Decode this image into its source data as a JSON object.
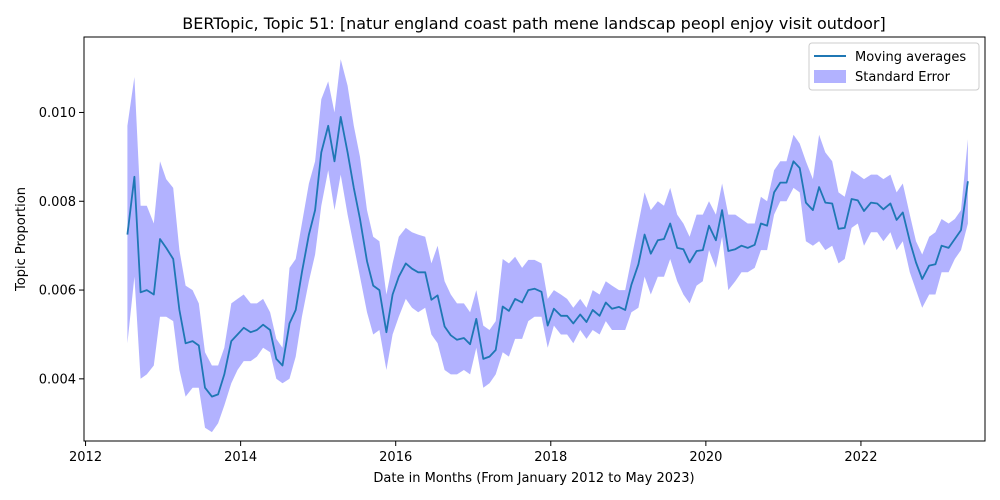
{
  "chart_data": {
    "type": "line",
    "title": "BERTopic, Topic 51: [natur england coast path mene landscap peopl enjoy visit outdoor]",
    "xlabel": "Date in Months (From January 2012 to May 2023)",
    "ylabel": "Topic Proportion",
    "xlim": [
      2011.98,
      2023.6
    ],
    "ylim": [
      0.0026,
      0.0117
    ],
    "x_ticks": [
      2012,
      2014,
      2016,
      2018,
      2020,
      2022
    ],
    "x_tick_labels": [
      "2012",
      "2014",
      "2016",
      "2018",
      "2020",
      "2022"
    ],
    "y_ticks": [
      0.004,
      0.006,
      0.008,
      0.01
    ],
    "y_tick_labels": [
      "0.004",
      "0.006",
      "0.008",
      "0.010"
    ],
    "grid": false,
    "legend_position": "top-right",
    "series": [
      {
        "name": "Moving averages",
        "color": "#1f77b4",
        "band_name": "Standard Error",
        "band_color": "#0000ff",
        "x": [
          2012.54,
          2012.63,
          2012.71,
          2012.79,
          2012.88,
          2012.96,
          2013.04,
          2013.13,
          2013.21,
          2013.29,
          2013.38,
          2013.46,
          2013.54,
          2013.63,
          2013.71,
          2013.79,
          2013.88,
          2013.96,
          2014.04,
          2014.13,
          2014.21,
          2014.29,
          2014.38,
          2014.46,
          2014.54,
          2014.63,
          2014.71,
          2014.79,
          2014.88,
          2014.96,
          2015.04,
          2015.13,
          2015.21,
          2015.29,
          2015.38,
          2015.46,
          2015.54,
          2015.63,
          2015.71,
          2015.79,
          2015.88,
          2015.96,
          2016.04,
          2016.13,
          2016.21,
          2016.29,
          2016.38,
          2016.46,
          2016.54,
          2016.63,
          2016.71,
          2016.79,
          2016.88,
          2016.96,
          2017.04,
          2017.13,
          2017.21,
          2017.29,
          2017.38,
          2017.46,
          2017.54,
          2017.63,
          2017.71,
          2017.79,
          2017.88,
          2017.96,
          2018.04,
          2018.13,
          2018.21,
          2018.29,
          2018.38,
          2018.46,
          2018.54,
          2018.63,
          2018.71,
          2018.79,
          2018.88,
          2018.96,
          2019.04,
          2019.13,
          2019.21,
          2019.29,
          2019.38,
          2019.46,
          2019.54,
          2019.63,
          2019.71,
          2019.79,
          2019.88,
          2019.96,
          2020.04,
          2020.13,
          2020.21,
          2020.29,
          2020.38,
          2020.46,
          2020.54,
          2020.63,
          2020.71,
          2020.79,
          2020.88,
          2020.96,
          2021.04,
          2021.13,
          2021.21,
          2021.29,
          2021.38,
          2021.46,
          2021.54,
          2021.63,
          2021.71,
          2021.79,
          2021.88,
          2021.96,
          2022.04,
          2022.13,
          2022.21,
          2022.29,
          2022.38,
          2022.46,
          2022.54,
          2022.63,
          2022.71,
          2022.79,
          2022.88,
          2022.96,
          2023.04,
          2023.13,
          2023.21,
          2023.29,
          2023.38
        ],
        "values": [
          0.00725,
          0.00855,
          0.00595,
          0.006,
          0.0059,
          0.00715,
          0.00695,
          0.0067,
          0.00555,
          0.0048,
          0.00485,
          0.00475,
          0.0038,
          0.0036,
          0.00365,
          0.0041,
          0.00485,
          0.005,
          0.00515,
          0.00505,
          0.0051,
          0.00522,
          0.0051,
          0.00445,
          0.0043,
          0.00525,
          0.00555,
          0.0064,
          0.00725,
          0.0078,
          0.0091,
          0.0097,
          0.0089,
          0.0099,
          0.0091,
          0.0083,
          0.0076,
          0.00665,
          0.0061,
          0.006,
          0.00505,
          0.0059,
          0.0063,
          0.0066,
          0.00648,
          0.0064,
          0.0064,
          0.00578,
          0.00588,
          0.00518,
          0.00498,
          0.00488,
          0.00492,
          0.00478,
          0.00535,
          0.00445,
          0.0045,
          0.00465,
          0.00563,
          0.00553,
          0.0058,
          0.00572,
          0.006,
          0.00603,
          0.00596,
          0.0052,
          0.00558,
          0.00542,
          0.00542,
          0.00525,
          0.00545,
          0.00528,
          0.00555,
          0.00542,
          0.00572,
          0.00558,
          0.00562,
          0.00555,
          0.00612,
          0.00658,
          0.00725,
          0.00682,
          0.00712,
          0.00715,
          0.0075,
          0.00695,
          0.00692,
          0.00662,
          0.00688,
          0.0069,
          0.00745,
          0.00712,
          0.0078,
          0.00688,
          0.00692,
          0.007,
          0.00695,
          0.00702,
          0.0075,
          0.00745,
          0.0082,
          0.00842,
          0.00842,
          0.0089,
          0.00875,
          0.00797,
          0.0078,
          0.00832,
          0.00797,
          0.00795,
          0.00738,
          0.0074,
          0.00805,
          0.00802,
          0.00778,
          0.00797,
          0.00795,
          0.00782,
          0.00795,
          0.00758,
          0.00775,
          0.0071,
          0.00662,
          0.00625,
          0.00655,
          0.00658,
          0.007,
          0.00695,
          0.00715,
          0.00735,
          0.00845
        ],
        "upper": [
          0.0097,
          0.0108,
          0.0079,
          0.0079,
          0.0075,
          0.0089,
          0.0085,
          0.0083,
          0.0069,
          0.0061,
          0.006,
          0.0057,
          0.0046,
          0.0043,
          0.0043,
          0.0047,
          0.0057,
          0.0058,
          0.0059,
          0.0057,
          0.0057,
          0.0058,
          0.0055,
          0.0049,
          0.0047,
          0.0065,
          0.0067,
          0.0075,
          0.0084,
          0.0089,
          0.0103,
          0.0107,
          0.01,
          0.0112,
          0.0106,
          0.0097,
          0.009,
          0.0078,
          0.0072,
          0.0071,
          0.0059,
          0.0066,
          0.0072,
          0.0074,
          0.0073,
          0.00725,
          0.0072,
          0.0066,
          0.007,
          0.0062,
          0.0059,
          0.0057,
          0.0057,
          0.0055,
          0.006,
          0.0052,
          0.0051,
          0.0053,
          0.0067,
          0.0066,
          0.00675,
          0.0065,
          0.00668,
          0.00668,
          0.0066,
          0.0058,
          0.006,
          0.0059,
          0.0058,
          0.0056,
          0.0058,
          0.0056,
          0.006,
          0.0059,
          0.0062,
          0.0061,
          0.006,
          0.006,
          0.0067,
          0.0075,
          0.0082,
          0.0078,
          0.008,
          0.0079,
          0.0083,
          0.0077,
          0.0075,
          0.0072,
          0.0077,
          0.0077,
          0.008,
          0.0077,
          0.0084,
          0.0077,
          0.0077,
          0.0076,
          0.0075,
          0.0075,
          0.0081,
          0.008,
          0.0087,
          0.0089,
          0.0089,
          0.0095,
          0.0093,
          0.0089,
          0.0085,
          0.0095,
          0.0091,
          0.0089,
          0.0082,
          0.0081,
          0.0087,
          0.0086,
          0.0085,
          0.0086,
          0.0086,
          0.0085,
          0.0086,
          0.0082,
          0.0084,
          0.0077,
          0.0071,
          0.0068,
          0.0072,
          0.0073,
          0.0076,
          0.0075,
          0.0076,
          0.0078,
          0.0094
        ],
        "lower": [
          0.0048,
          0.0063,
          0.004,
          0.0041,
          0.0043,
          0.0054,
          0.0054,
          0.0053,
          0.0042,
          0.0036,
          0.0038,
          0.0038,
          0.0029,
          0.0028,
          0.003,
          0.0034,
          0.0039,
          0.0042,
          0.0044,
          0.0044,
          0.0045,
          0.0047,
          0.0046,
          0.004,
          0.0039,
          0.004,
          0.0045,
          0.0054,
          0.0062,
          0.0068,
          0.0079,
          0.0087,
          0.0078,
          0.0086,
          0.0077,
          0.007,
          0.0063,
          0.0055,
          0.005,
          0.0051,
          0.0042,
          0.005,
          0.0054,
          0.0058,
          0.0056,
          0.0055,
          0.0056,
          0.005,
          0.0048,
          0.0042,
          0.0041,
          0.0041,
          0.0042,
          0.0041,
          0.0047,
          0.0038,
          0.0039,
          0.0041,
          0.0046,
          0.0045,
          0.0049,
          0.0049,
          0.0053,
          0.0054,
          0.0054,
          0.0047,
          0.0052,
          0.005,
          0.005,
          0.0048,
          0.0051,
          0.0049,
          0.0051,
          0.005,
          0.0053,
          0.0051,
          0.0051,
          0.0051,
          0.0055,
          0.0056,
          0.0063,
          0.0059,
          0.0063,
          0.0063,
          0.0067,
          0.0062,
          0.0059,
          0.0057,
          0.0061,
          0.0062,
          0.0069,
          0.0065,
          0.0072,
          0.006,
          0.0062,
          0.0064,
          0.0064,
          0.0065,
          0.0069,
          0.0069,
          0.0077,
          0.008,
          0.008,
          0.0083,
          0.0082,
          0.0071,
          0.007,
          0.0071,
          0.0069,
          0.007,
          0.0066,
          0.0067,
          0.0074,
          0.0075,
          0.007,
          0.0073,
          0.0073,
          0.0071,
          0.0073,
          0.0069,
          0.0071,
          0.0064,
          0.006,
          0.0056,
          0.0059,
          0.0059,
          0.0064,
          0.0064,
          0.0067,
          0.0069,
          0.0075
        ]
      }
    ]
  }
}
